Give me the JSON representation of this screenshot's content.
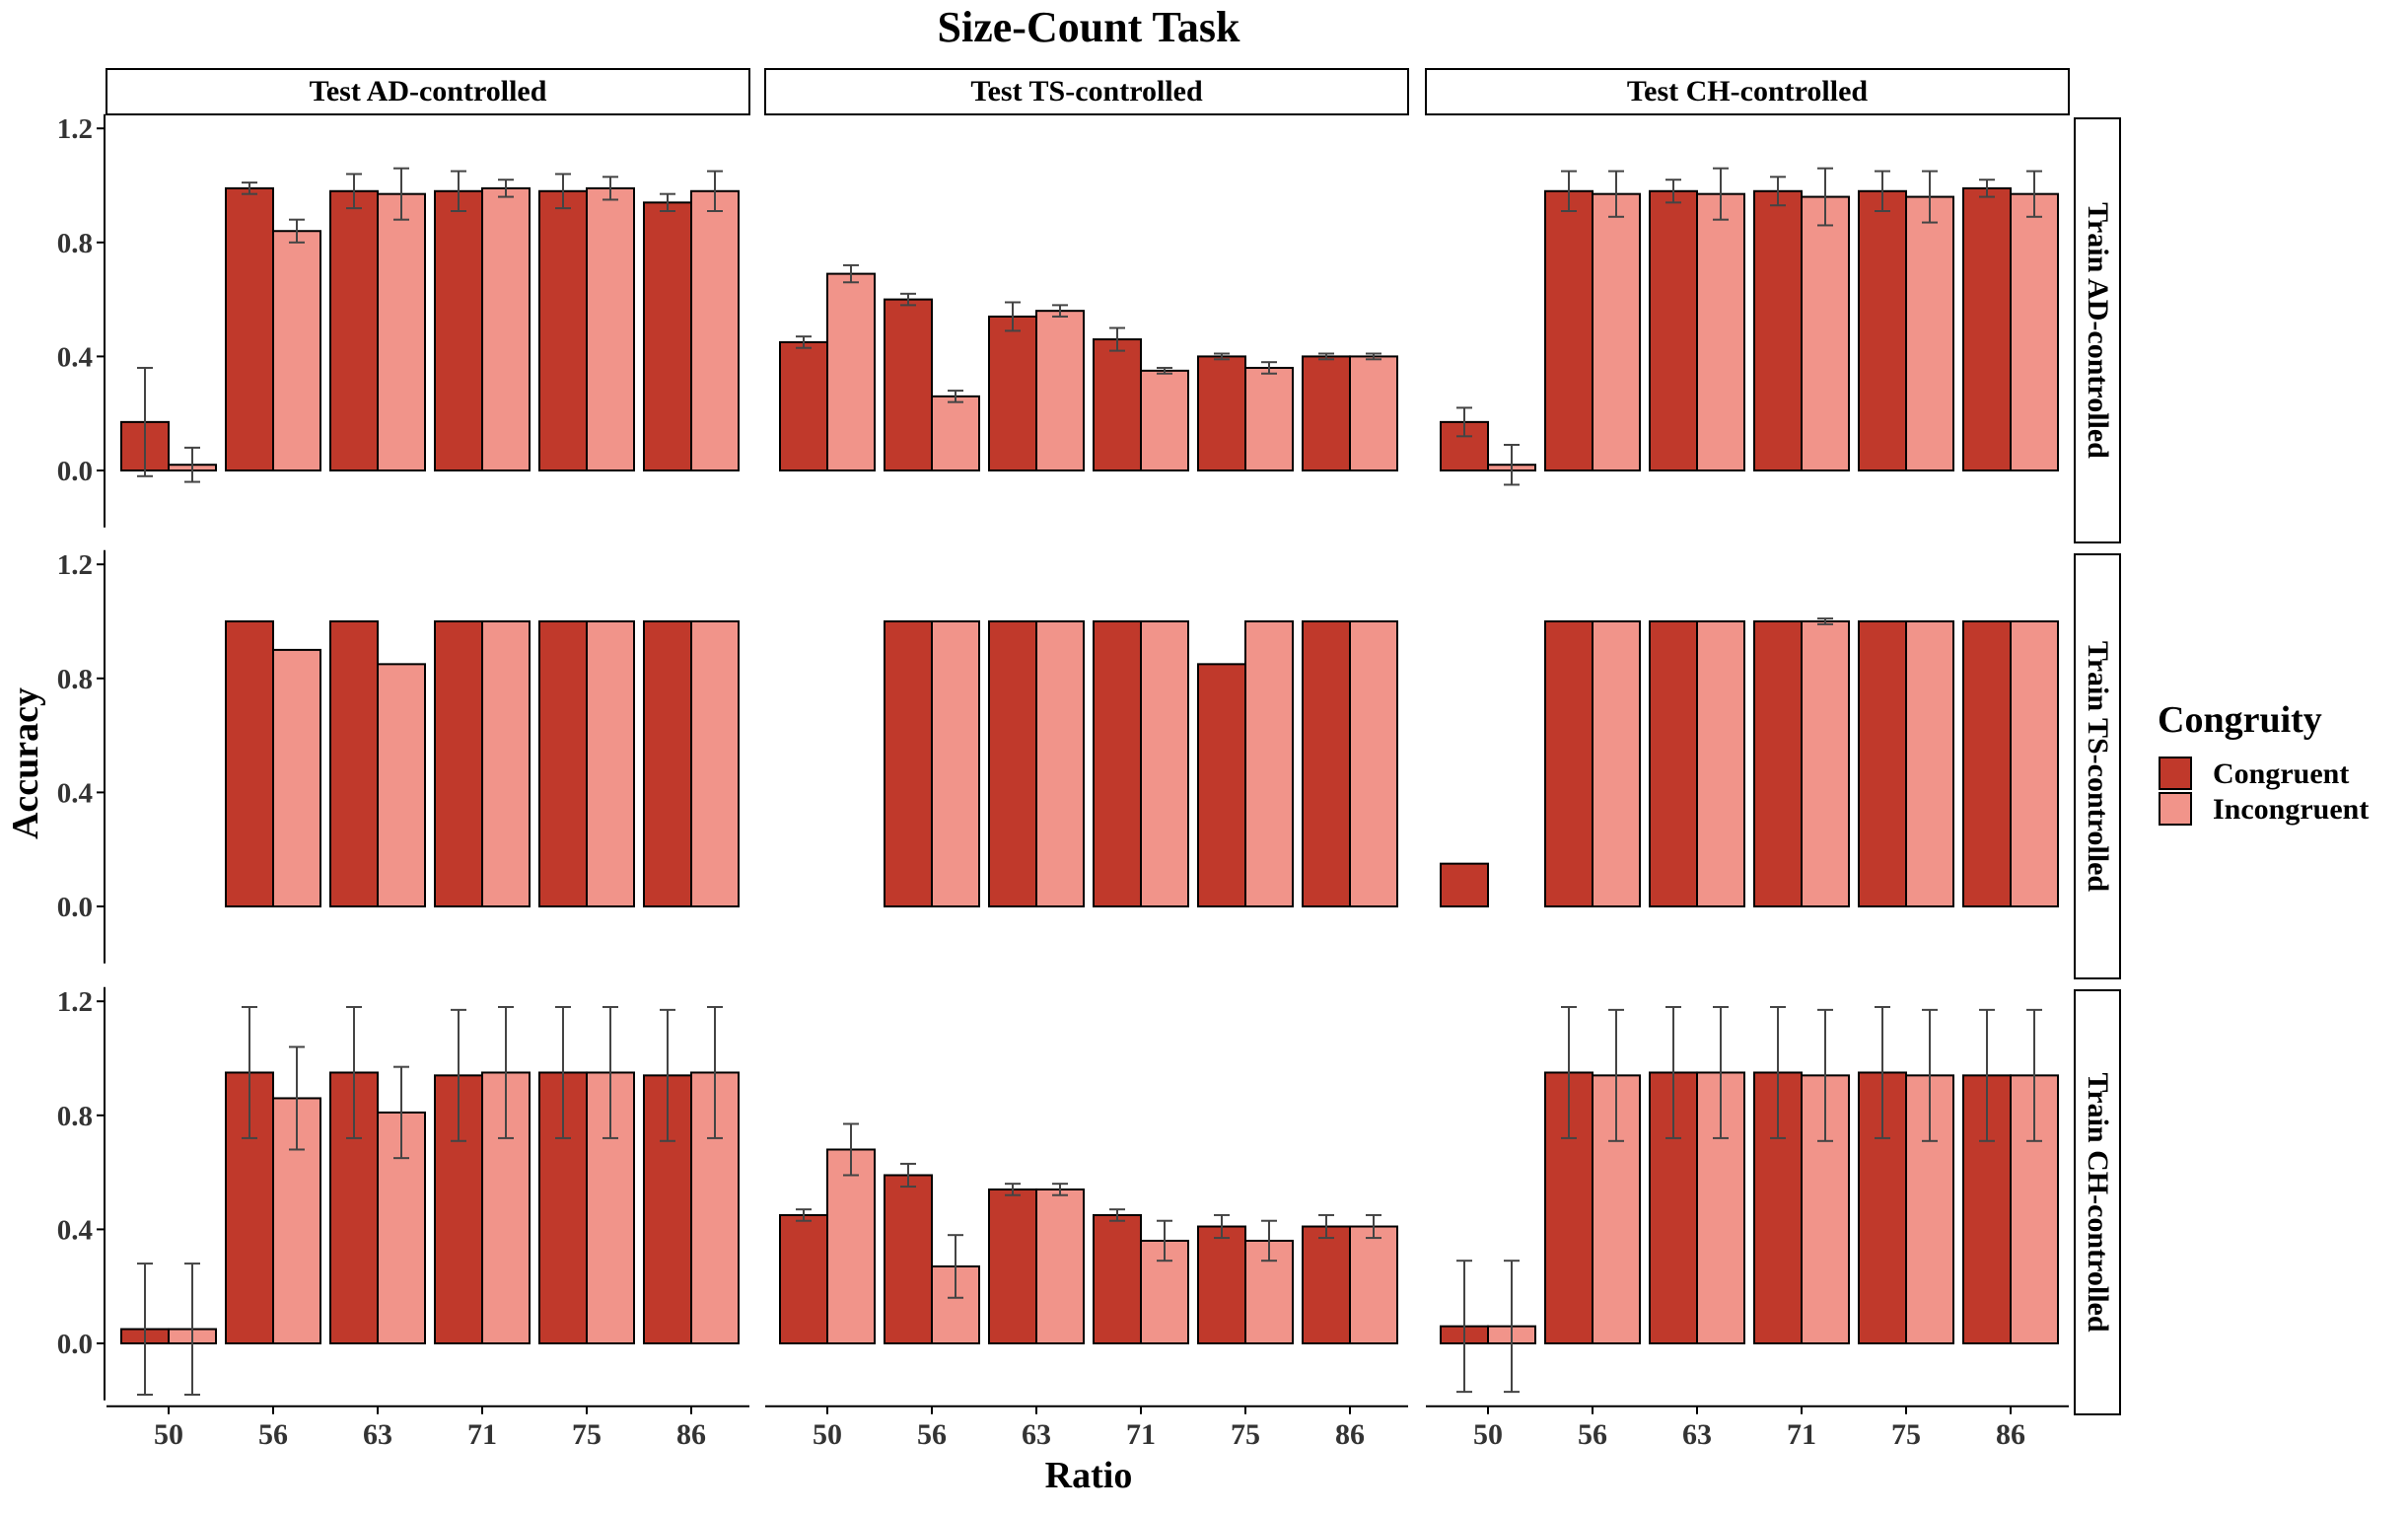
{
  "chart_data": {
    "type": "bar",
    "title": "Size-Count Task",
    "xlabel": "Ratio",
    "ylabel": "Accuracy",
    "categories": [
      "50",
      "56",
      "63",
      "71",
      "75",
      "86"
    ],
    "y_ticks": [
      "0.0",
      "0.4",
      "0.8",
      "1.2"
    ],
    "ylim": [
      -0.2,
      1.25
    ],
    "columns": [
      "Test AD-controlled",
      "Test TS-controlled",
      "Test CH-controlled"
    ],
    "rows": [
      "Train AD-controlled",
      "Train TS-controlled",
      "Train CH-controlled"
    ],
    "legend": {
      "title": "Congruity",
      "position": "right",
      "items": [
        {
          "name": "Congruent",
          "color": "#c0392b"
        },
        {
          "name": "Incongruent",
          "color": "#f1948a"
        }
      ]
    },
    "colors": {
      "congruent": "#c0392b",
      "incongruent": "#f1948a",
      "bar_border": "#000000",
      "error_bar": "#444444"
    },
    "panels": [
      {
        "row": "Train AD-controlled",
        "column": "Test AD-controlled",
        "congruent": [
          0.17,
          0.99,
          0.98,
          0.98,
          0.98,
          0.94
        ],
        "incongruent": [
          0.02,
          0.84,
          0.97,
          0.99,
          0.99,
          0.98
        ],
        "congruent_err": [
          0.19,
          0.02,
          0.06,
          0.07,
          0.06,
          0.03
        ],
        "incongruent_err": [
          0.06,
          0.04,
          0.09,
          0.03,
          0.04,
          0.07
        ]
      },
      {
        "row": "Train AD-controlled",
        "column": "Test TS-controlled",
        "congruent": [
          0.45,
          0.6,
          0.54,
          0.46,
          0.4,
          0.4
        ],
        "incongruent": [
          0.69,
          0.26,
          0.56,
          0.35,
          0.36,
          0.4
        ],
        "congruent_err": [
          0.02,
          0.02,
          0.05,
          0.04,
          0.01,
          0.01
        ],
        "incongruent_err": [
          0.03,
          0.02,
          0.02,
          0.01,
          0.02,
          0.01
        ]
      },
      {
        "row": "Train AD-controlled",
        "column": "Test CH-controlled",
        "congruent": [
          0.17,
          0.98,
          0.98,
          0.98,
          0.98,
          0.99
        ],
        "incongruent": [
          0.02,
          0.97,
          0.97,
          0.96,
          0.96,
          0.97
        ],
        "congruent_err": [
          0.05,
          0.07,
          0.04,
          0.05,
          0.07,
          0.03
        ],
        "incongruent_err": [
          0.07,
          0.08,
          0.09,
          0.1,
          0.09,
          0.08
        ]
      },
      {
        "row": "Train TS-controlled",
        "column": "Test AD-controlled",
        "congruent": [
          0.0,
          1.0,
          1.0,
          1.0,
          1.0,
          1.0
        ],
        "incongruent": [
          0.0,
          0.9,
          0.85,
          1.0,
          1.0,
          1.0
        ],
        "congruent_err": [
          0,
          0,
          0,
          0,
          0,
          0
        ],
        "incongruent_err": [
          0,
          0,
          0,
          0,
          0,
          0
        ]
      },
      {
        "row": "Train TS-controlled",
        "column": "Test TS-controlled",
        "congruent": [
          0.0,
          1.0,
          1.0,
          1.0,
          0.85,
          1.0
        ],
        "incongruent": [
          0.0,
          1.0,
          1.0,
          1.0,
          1.0,
          1.0
        ],
        "congruent_err": [
          0,
          0,
          0,
          0,
          0,
          0
        ],
        "incongruent_err": [
          0,
          0,
          0,
          0,
          0,
          0
        ]
      },
      {
        "row": "Train TS-controlled",
        "column": "Test CH-controlled",
        "congruent": [
          0.15,
          1.0,
          1.0,
          1.0,
          1.0,
          1.0
        ],
        "incongruent": [
          0.0,
          1.0,
          1.0,
          1.0,
          1.0,
          1.0
        ],
        "congruent_err": [
          0,
          0,
          0,
          0,
          0,
          0
        ],
        "incongruent_err": [
          0,
          0,
          0,
          0.01,
          0,
          0
        ]
      },
      {
        "row": "Train CH-controlled",
        "column": "Test AD-controlled",
        "congruent": [
          0.05,
          0.95,
          0.95,
          0.94,
          0.95,
          0.94
        ],
        "incongruent": [
          0.05,
          0.86,
          0.81,
          0.95,
          0.95,
          0.95
        ],
        "congruent_err": [
          0.23,
          0.23,
          0.23,
          0.23,
          0.23,
          0.23
        ],
        "incongruent_err": [
          0.23,
          0.18,
          0.16,
          0.23,
          0.23,
          0.23
        ]
      },
      {
        "row": "Train CH-controlled",
        "column": "Test TS-controlled",
        "congruent": [
          0.45,
          0.59,
          0.54,
          0.45,
          0.41,
          0.41
        ],
        "incongruent": [
          0.68,
          0.27,
          0.54,
          0.36,
          0.36,
          0.41
        ],
        "congruent_err": [
          0.02,
          0.04,
          0.02,
          0.02,
          0.04,
          0.04
        ],
        "incongruent_err": [
          0.09,
          0.11,
          0.02,
          0.07,
          0.07,
          0.04
        ]
      },
      {
        "row": "Train CH-controlled",
        "column": "Test CH-controlled",
        "congruent": [
          0.06,
          0.95,
          0.95,
          0.95,
          0.95,
          0.94
        ],
        "incongruent": [
          0.06,
          0.94,
          0.95,
          0.94,
          0.94,
          0.94
        ],
        "congruent_err": [
          0.23,
          0.23,
          0.23,
          0.23,
          0.23,
          0.23
        ],
        "incongruent_err": [
          0.23,
          0.23,
          0.23,
          0.23,
          0.23,
          0.23
        ]
      }
    ]
  }
}
